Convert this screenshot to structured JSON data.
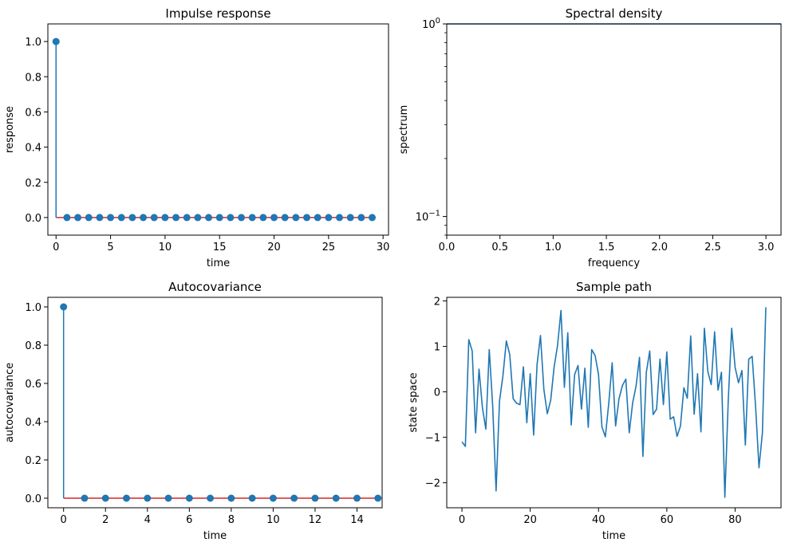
{
  "chart_data": [
    {
      "id": "impulse",
      "type": "stem",
      "title": "Impulse response",
      "xlabel": "time",
      "ylabel": "response",
      "xlim": [
        -0.75,
        30.5
      ],
      "ylim": [
        -0.1,
        1.1
      ],
      "xticks": [
        0,
        5,
        10,
        15,
        20,
        25,
        30
      ],
      "yticks": [
        0.0,
        0.2,
        0.4,
        0.6,
        0.8,
        1.0
      ],
      "xtick_labels": [
        "0",
        "5",
        "10",
        "15",
        "20",
        "25",
        "30"
      ],
      "ytick_labels": [
        "0.0",
        "0.2",
        "0.4",
        "0.6",
        "0.8",
        "1.0"
      ],
      "x": [
        0,
        1,
        2,
        3,
        4,
        5,
        6,
        7,
        8,
        9,
        10,
        11,
        12,
        13,
        14,
        15,
        16,
        17,
        18,
        19,
        20,
        21,
        22,
        23,
        24,
        25,
        26,
        27,
        28,
        29
      ],
      "y": [
        1,
        0,
        0,
        0,
        0,
        0,
        0,
        0,
        0,
        0,
        0,
        0,
        0,
        0,
        0,
        0,
        0,
        0,
        0,
        0,
        0,
        0,
        0,
        0,
        0,
        0,
        0,
        0,
        0,
        0
      ],
      "colors": {
        "stem": "#1f77b4",
        "baseline": "#d62728"
      }
    },
    {
      "id": "spectral",
      "type": "line",
      "title": "Spectral density",
      "xlabel": "frequency",
      "ylabel": "spectrum",
      "yscale": "log",
      "xlim": [
        0,
        3.1416
      ],
      "ylim": [
        0.08,
        1.0
      ],
      "xticks": [
        0.0,
        0.5,
        1.0,
        1.5,
        2.0,
        2.5,
        3.0
      ],
      "xtick_labels": [
        "0.0",
        "0.5",
        "1.0",
        "1.5",
        "2.0",
        "2.5",
        "3.0"
      ],
      "yticks_major": [
        0.1,
        1.0
      ],
      "ytick_labels": [
        "10",
        "10"
      ],
      "ytick_exponents": [
        "−1",
        "0"
      ],
      "yticks_minor": [
        0.08,
        0.09,
        0.2,
        0.3,
        0.4,
        0.5,
        0.6,
        0.7,
        0.8,
        0.9
      ],
      "x": [
        0,
        3.1416
      ],
      "y": [
        1.0,
        1.0
      ],
      "colors": {
        "line": "#1f77b4"
      }
    },
    {
      "id": "autocov",
      "type": "stem",
      "title": "Autocovariance",
      "xlabel": "time",
      "ylabel": "autocovariance",
      "xlim": [
        -0.75,
        15.2
      ],
      "ylim": [
        -0.05,
        1.05
      ],
      "xticks": [
        0,
        2,
        4,
        6,
        8,
        10,
        12,
        14
      ],
      "yticks": [
        0.0,
        0.2,
        0.4,
        0.6,
        0.8,
        1.0
      ],
      "xtick_labels": [
        "0",
        "2",
        "4",
        "6",
        "8",
        "10",
        "12",
        "14"
      ],
      "ytick_labels": [
        "0.0",
        "0.2",
        "0.4",
        "0.6",
        "0.8",
        "1.0"
      ],
      "x": [
        0,
        1,
        2,
        3,
        4,
        5,
        6,
        7,
        8,
        9,
        10,
        11,
        12,
        13,
        14,
        15
      ],
      "y": [
        1,
        0,
        0,
        0,
        0,
        0,
        0,
        0,
        0,
        0,
        0,
        0,
        0,
        0,
        0,
        0
      ],
      "colors": {
        "stem": "#1f77b4",
        "baseline": "#d62728"
      }
    },
    {
      "id": "sample",
      "type": "line",
      "title": "Sample path",
      "xlabel": "time",
      "ylabel": "state space",
      "xlim": [
        -4.45,
        93.45
      ],
      "ylim": [
        -2.55,
        2.08
      ],
      "xticks": [
        0,
        20,
        40,
        60,
        80
      ],
      "yticks": [
        -2,
        -1,
        0,
        1,
        2
      ],
      "xtick_labels": [
        "0",
        "20",
        "40",
        "60",
        "80"
      ],
      "ytick_labels": [
        "−2",
        "−1",
        "0",
        "1",
        "2"
      ],
      "x": [
        0,
        1,
        2,
        3,
        4,
        5,
        6,
        7,
        8,
        9,
        10,
        11,
        12,
        13,
        14,
        15,
        16,
        17,
        18,
        19,
        20,
        21,
        22,
        23,
        24,
        25,
        26,
        27,
        28,
        29,
        30,
        31,
        32,
        33,
        34,
        35,
        36,
        37,
        38,
        39,
        40,
        41,
        42,
        43,
        44,
        45,
        46,
        47,
        48,
        49,
        50,
        51,
        52,
        53,
        54,
        55,
        56,
        57,
        58,
        59,
        60,
        61,
        62,
        63,
        64,
        65,
        66,
        67,
        68,
        69,
        70,
        71,
        72,
        73,
        74,
        75,
        76,
        77,
        78,
        79,
        80,
        81,
        82,
        83,
        84,
        85,
        86,
        87,
        88,
        89
      ],
      "y": [
        -1.1,
        -1.2,
        1.15,
        0.9,
        -0.9,
        0.5,
        -0.35,
        -0.82,
        0.93,
        -0.3,
        -2.18,
        -0.2,
        0.35,
        1.12,
        0.82,
        -0.15,
        -0.25,
        -0.28,
        0.55,
        -0.68,
        0.4,
        -0.95,
        0.6,
        1.24,
        0.05,
        -0.48,
        -0.18,
        0.55,
        1.02,
        1.79,
        0.1,
        1.3,
        -0.73,
        0.38,
        0.58,
        -0.38,
        0.52,
        -0.78,
        0.93,
        0.8,
        0.38,
        -0.77,
        -0.99,
        -0.25,
        0.64,
        -0.75,
        -0.15,
        0.14,
        0.28,
        -0.9,
        -0.24,
        0.13,
        0.76,
        -1.42,
        0.43,
        0.9,
        -0.5,
        -0.38,
        0.72,
        -0.28,
        0.88,
        -0.6,
        -0.55,
        -0.98,
        -0.75,
        0.09,
        -0.14,
        1.23,
        -0.49,
        0.4,
        -0.88,
        1.4,
        0.45,
        0.16,
        1.32,
        0.04,
        0.43,
        -2.32,
        -0.18,
        1.4,
        0.54,
        0.2,
        0.47,
        -1.17,
        0.72,
        0.78,
        -0.32,
        -1.67,
        -0.9,
        1.86
      ],
      "colors": {
        "line": "#1f77b4"
      }
    }
  ]
}
